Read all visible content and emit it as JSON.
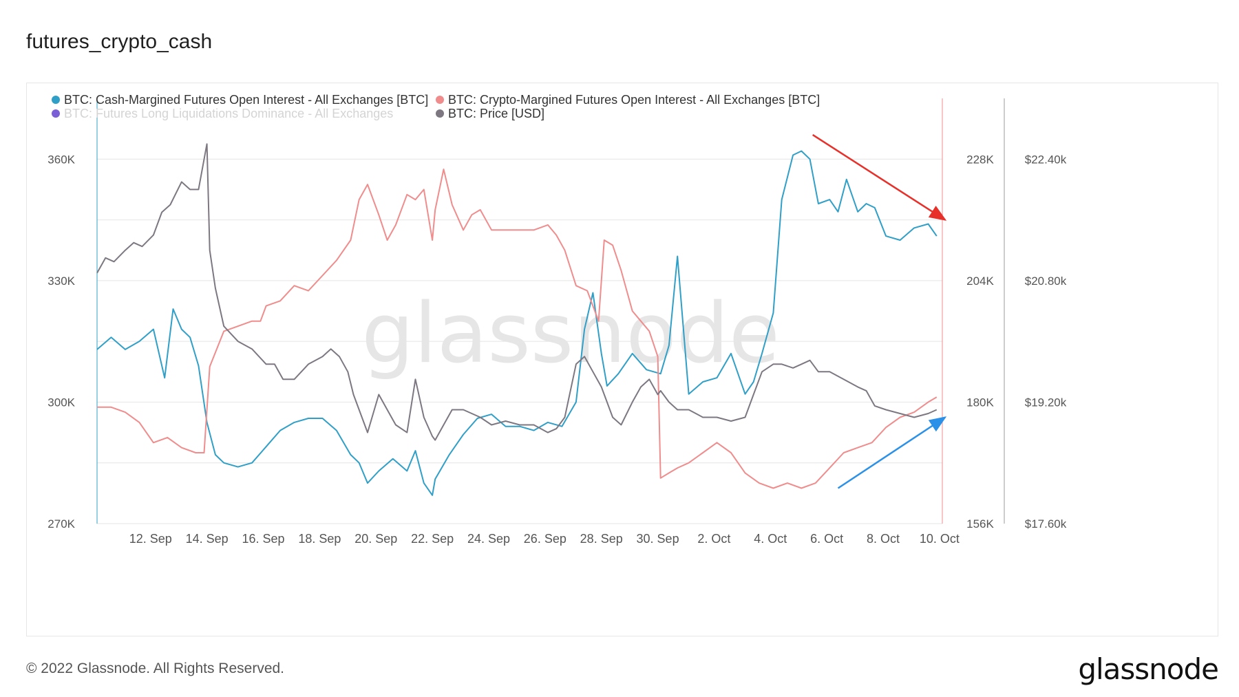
{
  "title": "futures_crypto_cash",
  "footer": {
    "copyright": "© 2022 Glassnode. All Rights Reserved.",
    "logo": "glassnode"
  },
  "watermark": "glassnode",
  "colors": {
    "cash": "#2f9fc7",
    "crypto": "#f08c8c",
    "dominance": "#7a5fd6",
    "price": "#7d7781",
    "arrow_down": "#e8302a",
    "arrow_up": "#2a90e8",
    "grid": "#e4e4e4"
  },
  "chart_data": {
    "type": "line",
    "title": "futures_crypto_cash",
    "x_ticks": [
      "12. Sep",
      "14. Sep",
      "16. Sep",
      "18. Sep",
      "20. Sep",
      "22. Sep",
      "24. Sep",
      "26. Sep",
      "28. Sep",
      "30. Sep",
      "2. Oct",
      "4. Oct",
      "6. Oct",
      "8. Oct",
      "10. Oct"
    ],
    "x_range_days": [
      0,
      30
    ],
    "x_tick_days": [
      1.9,
      3.9,
      5.9,
      7.9,
      9.9,
      11.9,
      13.9,
      15.9,
      17.9,
      19.9,
      21.9,
      23.9,
      25.9,
      27.9,
      29.9
    ],
    "axes": {
      "left": {
        "ticks": [
          "270K",
          "300K",
          "330K",
          "360K"
        ],
        "tick_values": [
          270000,
          300000,
          330000,
          360000
        ],
        "range": [
          270000,
          375000
        ]
      },
      "right1": {
        "ticks": [
          "156K",
          "180K",
          "204K",
          "228K"
        ],
        "tick_values": [
          156000,
          180000,
          204000,
          228000
        ],
        "range": [
          156000,
          240000
        ]
      },
      "right2": {
        "ticks": [
          "$17.60k",
          "$19.20k",
          "$20.80k",
          "$22.40k"
        ],
        "tick_values": [
          17600,
          19200,
          20800,
          22400
        ],
        "range": [
          17600,
          23200
        ]
      }
    },
    "legend": [
      {
        "name": "BTC: Cash-Margined Futures Open Interest - All Exchanges [BTC]",
        "color": "#2f9fc7",
        "faded": false
      },
      {
        "name": "BTC: Crypto-Margined Futures Open Interest - All Exchanges [BTC]",
        "color": "#f08c8c",
        "faded": false
      },
      {
        "name": "BTC: Futures Long Liquidations Dominance - All Exchanges",
        "color": "#7a5fd6",
        "faded": true
      },
      {
        "name": "BTC: Price [USD]",
        "color": "#7d7781",
        "faded": false
      }
    ],
    "series": [
      {
        "name": "BTC: Cash-Margined Futures Open Interest - All Exchanges [BTC]",
        "axis": "left",
        "color": "#2f9fc7",
        "x": [
          0,
          0.5,
          1,
          1.5,
          2,
          2.4,
          2.7,
          3,
          3.3,
          3.6,
          3.9,
          4.2,
          4.5,
          5,
          5.5,
          6,
          6.5,
          7,
          7.5,
          8,
          8.5,
          9,
          9.3,
          9.6,
          10,
          10.5,
          11,
          11.3,
          11.6,
          11.9,
          12,
          12.5,
          13,
          13.5,
          14,
          14.5,
          15,
          15.5,
          16,
          16.5,
          17,
          17.3,
          17.6,
          17.9,
          18.1,
          18.5,
          19,
          19.5,
          20,
          20.3,
          20.6,
          21,
          21.5,
          22,
          22.5,
          23,
          23.3,
          23.6,
          24,
          24.3,
          24.7,
          25,
          25.3,
          25.6,
          26,
          26.3,
          26.6,
          27,
          27.3,
          27.6,
          28,
          28.5,
          29,
          29.5,
          29.8
        ],
        "values": [
          313000,
          316000,
          313000,
          315000,
          318000,
          306000,
          323000,
          318000,
          316000,
          309000,
          295000,
          287000,
          285000,
          284000,
          285000,
          289000,
          293000,
          295000,
          296000,
          296000,
          293000,
          287000,
          285000,
          280000,
          283000,
          286000,
          283000,
          288000,
          280000,
          277000,
          281000,
          287000,
          292000,
          296000,
          297000,
          294000,
          294000,
          293000,
          295000,
          294000,
          300000,
          318000,
          327000,
          312000,
          304000,
          307000,
          312000,
          308000,
          307000,
          314000,
          336000,
          302000,
          305000,
          306000,
          312000,
          302000,
          305000,
          312000,
          322000,
          350000,
          361000,
          362000,
          360000,
          349000,
          350000,
          347000,
          355000,
          347000,
          349000,
          348000,
          341000,
          340000,
          343000,
          344000,
          341000
        ]
      },
      {
        "name": "BTC: Crypto-Margined Futures Open Interest - All Exchanges [BTC]",
        "axis": "right1",
        "color": "#f08c8c",
        "x": [
          0,
          0.5,
          1,
          1.5,
          2,
          2.5,
          3,
          3.5,
          3.8,
          4,
          4.5,
          5,
          5.5,
          5.8,
          6,
          6.5,
          7,
          7.5,
          8,
          8.5,
          9,
          9.3,
          9.6,
          10,
          10.3,
          10.6,
          11,
          11.3,
          11.6,
          11.9,
          12,
          12.3,
          12.6,
          13,
          13.3,
          13.6,
          14,
          14.5,
          15,
          15.5,
          16,
          16.3,
          16.6,
          17,
          17.4,
          17.8,
          18,
          18.3,
          18.6,
          19,
          19.3,
          19.6,
          19.9,
          20,
          20.3,
          20.6,
          21,
          21.5,
          22,
          22.5,
          23,
          23.5,
          24,
          24.5,
          25,
          25.5,
          26,
          26.5,
          27,
          27.5,
          28,
          28.5,
          29,
          29.5,
          29.8
        ],
        "values": [
          179000,
          179000,
          178000,
          176000,
          172000,
          173000,
          171000,
          170000,
          170000,
          187000,
          194000,
          195000,
          196000,
          196000,
          199000,
          200000,
          203000,
          202000,
          205000,
          208000,
          212000,
          220000,
          223000,
          217000,
          212000,
          215000,
          221000,
          220000,
          222000,
          212000,
          218000,
          226000,
          219000,
          214000,
          217000,
          218000,
          214000,
          214000,
          214000,
          214000,
          215000,
          213000,
          210000,
          203000,
          202000,
          196000,
          212000,
          211000,
          206000,
          198000,
          196000,
          194000,
          189000,
          165000,
          166000,
          167000,
          168000,
          170000,
          172000,
          170000,
          166000,
          164000,
          163000,
          164000,
          163000,
          164000,
          167000,
          170000,
          171000,
          172000,
          175000,
          177000,
          178000,
          180000,
          181000
        ]
      },
      {
        "name": "BTC: Price [USD]",
        "axis": "right2",
        "color": "#7d7781",
        "x": [
          0,
          0.3,
          0.6,
          1,
          1.3,
          1.6,
          2,
          2.3,
          2.6,
          3,
          3.3,
          3.6,
          3.9,
          4,
          4.2,
          4.5,
          5,
          5.5,
          6,
          6.3,
          6.6,
          7,
          7.5,
          8,
          8.3,
          8.6,
          8.9,
          9.1,
          9.3,
          9.6,
          10,
          10.3,
          10.6,
          11,
          11.3,
          11.6,
          11.9,
          12,
          12.3,
          12.6,
          13,
          13.3,
          13.6,
          14,
          14.5,
          15,
          15.5,
          16,
          16.3,
          16.6,
          17,
          17.3,
          17.6,
          17.9,
          18,
          18.3,
          18.6,
          19,
          19.3,
          19.6,
          19.9,
          20,
          20.3,
          20.6,
          21,
          21.5,
          22,
          22.5,
          23,
          23.3,
          23.6,
          24,
          24.3,
          24.7,
          25,
          25.3,
          25.6,
          26,
          26.5,
          27,
          27.3,
          27.6,
          28,
          28.5,
          29,
          29.5,
          29.8
        ],
        "values": [
          20900,
          21100,
          21050,
          21200,
          21300,
          21250,
          21400,
          21700,
          21800,
          22100,
          22000,
          22000,
          22600,
          21200,
          20700,
          20200,
          20000,
          19900,
          19700,
          19700,
          19500,
          19500,
          19700,
          19800,
          19900,
          19800,
          19600,
          19300,
          19100,
          18800,
          19300,
          19100,
          18900,
          18800,
          19500,
          19000,
          18750,
          18700,
          18900,
          19100,
          19100,
          19050,
          19000,
          18900,
          18950,
          18900,
          18900,
          18800,
          18850,
          19000,
          19700,
          19800,
          19600,
          19400,
          19300,
          19000,
          18900,
          19200,
          19400,
          19500,
          19300,
          19350,
          19200,
          19100,
          19100,
          19000,
          19000,
          18950,
          19000,
          19300,
          19600,
          19700,
          19700,
          19650,
          19700,
          19750,
          19600,
          19600,
          19500,
          19400,
          19350,
          19150,
          19100,
          19050,
          19000,
          19050,
          19100
        ]
      }
    ],
    "annotations": [
      {
        "kind": "arrow",
        "color": "#e8302a",
        "from": [
          25.4,
          366000
        ],
        "to": [
          30.1,
          345000
        ],
        "label": "down-trend"
      },
      {
        "kind": "arrow",
        "color": "#2a90e8",
        "from": [
          26.3,
          163000
        ],
        "to": [
          30.1,
          177000
        ],
        "label": "up-trend"
      }
    ]
  }
}
